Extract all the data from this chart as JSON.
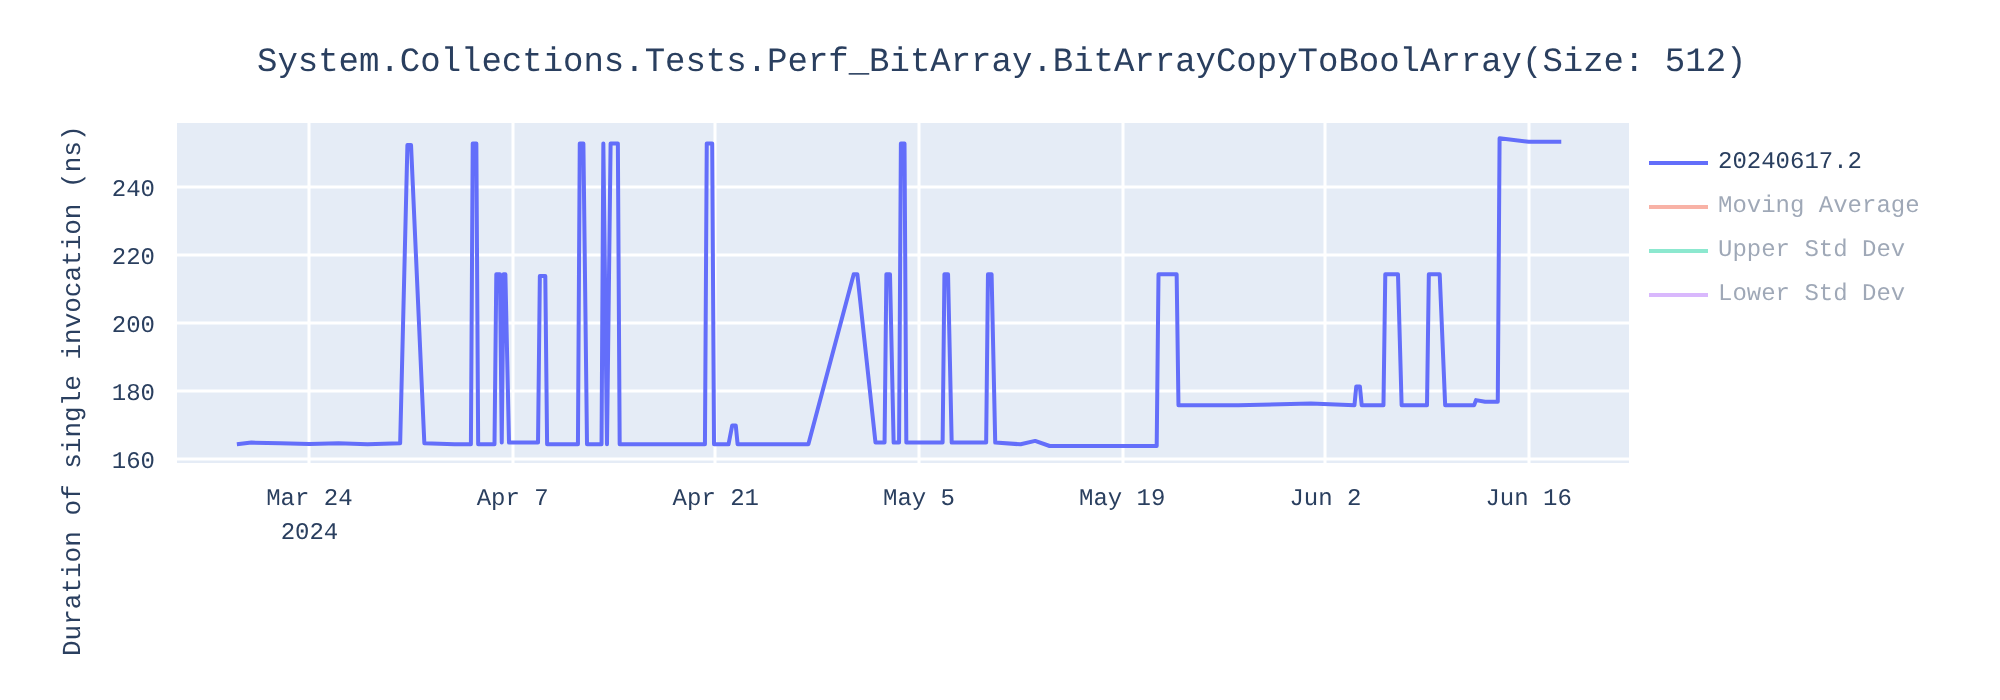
{
  "chart_data": {
    "type": "line",
    "title": "System.Collections.Tests.Perf_BitArray.BitArrayCopyToBoolArray(Size: 512)",
    "ylabel": "Duration of single invocation (ns)",
    "x": [
      "2024-03-19T00:00",
      "2024-03-20T00:00",
      "2024-03-22T00:00",
      "2024-03-24T00:00",
      "2024-03-26T00:00",
      "2024-03-28T00:00",
      "2024-03-30T06:00",
      "2024-03-30T18:00",
      "2024-03-31T00:00",
      "2024-03-31T22:00",
      "2024-04-03T00:00",
      "2024-04-04T03:00",
      "2024-04-04T06:00",
      "2024-04-04T12:00",
      "2024-04-04T15:00",
      "2024-04-05T18:00",
      "2024-04-05T21:00",
      "2024-04-06T03:00",
      "2024-04-06T06:00",
      "2024-04-06T09:00",
      "2024-04-06T12:00",
      "2024-04-06T18:00",
      "2024-04-08T18:00",
      "2024-04-08T21:00",
      "2024-04-09T06:00",
      "2024-04-09T09:00",
      "2024-04-11T12:00",
      "2024-04-11T15:00",
      "2024-04-11T21:00",
      "2024-04-12T03:00",
      "2024-04-13T03:00",
      "2024-04-13T06:00",
      "2024-04-13T12:00",
      "2024-04-13T18:00",
      "2024-04-14T06:00",
      "2024-04-14T09:00",
      "2024-04-20T06:00",
      "2024-04-20T09:00",
      "2024-04-20T18:00",
      "2024-04-20T21:00",
      "2024-04-21T21:00",
      "2024-04-22T03:00",
      "2024-04-22T09:00",
      "2024-04-22T12:00",
      "2024-04-27T09:00",
      "2024-04-30T12:00",
      "2024-04-30T18:00",
      "2024-05-02T00:00",
      "2024-05-02T15:00",
      "2024-05-02T18:00",
      "2024-05-03T00:00",
      "2024-05-03T06:00",
      "2024-05-03T15:00",
      "2024-05-03T18:00",
      "2024-05-04T00:00",
      "2024-05-04T03:00",
      "2024-05-06T15:00",
      "2024-05-06T18:00",
      "2024-05-07T00:00",
      "2024-05-07T06:00",
      "2024-05-09T15:00",
      "2024-05-09T18:00",
      "2024-05-10T00:00",
      "2024-05-10T06:00",
      "2024-05-12T00:00",
      "2024-05-13T00:00",
      "2024-05-14T00:00",
      "2024-05-17T00:00",
      "2024-05-21T09:00",
      "2024-05-21T12:00",
      "2024-05-22T18:00",
      "2024-05-22T21:00",
      "2024-05-27T00:00",
      "2024-06-01T00:00",
      "2024-06-04T00:00",
      "2024-06-04T03:00",
      "2024-06-04T09:00",
      "2024-06-04T12:00",
      "2024-06-06T00:00",
      "2024-06-06T03:00",
      "2024-06-07T00:00",
      "2024-06-07T06:00",
      "2024-06-09T00:00",
      "2024-06-09T03:00",
      "2024-06-09T21:00",
      "2024-06-10T06:00",
      "2024-06-12T06:00",
      "2024-06-12T09:00",
      "2024-06-13T00:00",
      "2024-06-13T21:00",
      "2024-06-14T00:00",
      "2024-06-16T00:00",
      "2024-06-18T06:00"
    ],
    "series": [
      {
        "name": "20240617.2",
        "color": "#636efa",
        "values": [
          164.5,
          165,
          164.8,
          164.6,
          164.8,
          164.5,
          164.8,
          252.5,
          252.5,
          164.8,
          164.5,
          164.5,
          253,
          253,
          164.5,
          164.5,
          214.5,
          214.5,
          165,
          214.5,
          214.5,
          165,
          165,
          214,
          214,
          164.5,
          164.5,
          253,
          253,
          164.5,
          164.5,
          253,
          164.5,
          253,
          253,
          164.5,
          164.5,
          253,
          253,
          164.5,
          164.5,
          170,
          170,
          164.5,
          164.5,
          214.5,
          214.5,
          165,
          165,
          214.5,
          214.5,
          165,
          165,
          253,
          253,
          165,
          165,
          214.5,
          214.5,
          165,
          165,
          214.5,
          214.5,
          165,
          164.5,
          165.5,
          164,
          164,
          164,
          214.5,
          214.5,
          176,
          176,
          176.5,
          176,
          181.5,
          181.5,
          176,
          176,
          214.5,
          214.5,
          176,
          176,
          214.5,
          214.5,
          176,
          176,
          177.5,
          177,
          177,
          254.5,
          253.5,
          253.5
        ]
      },
      {
        "name": "Moving Average",
        "color": "#ef553b",
        "values": [
          null,
          null,
          null,
          null,
          null,
          null,
          null,
          null,
          null,
          null,
          null,
          null,
          null,
          null,
          null,
          null,
          null,
          null,
          null,
          null,
          null,
          null,
          null,
          null,
          null,
          null,
          null,
          null,
          null,
          null,
          null,
          null,
          null,
          null,
          null,
          null,
          null,
          null,
          null,
          null,
          null,
          null,
          null,
          null,
          null,
          null,
          null,
          null,
          null,
          null,
          null,
          null,
          null,
          null,
          null,
          null,
          null,
          null,
          null,
          null,
          null,
          null,
          null,
          null,
          null,
          null,
          null,
          null,
          null,
          null,
          null,
          null,
          null,
          null,
          null,
          null,
          null,
          null,
          null,
          null,
          null,
          null,
          null,
          null,
          null,
          null,
          null,
          null,
          null,
          null,
          null,
          null,
          null
        ]
      },
      {
        "name": "Upper Std Dev",
        "color": "#00cc96",
        "values": [
          null,
          null,
          null,
          null,
          null,
          null,
          null,
          null,
          null,
          null,
          null,
          null,
          null,
          null,
          null,
          null,
          null,
          null,
          null,
          null,
          null,
          null,
          null,
          null,
          null,
          null,
          null,
          null,
          null,
          null,
          null,
          null,
          null,
          null,
          null,
          null,
          null,
          null,
          null,
          null,
          null,
          null,
          null,
          null,
          null,
          null,
          null,
          null,
          null,
          null,
          null,
          null,
          null,
          null,
          null,
          null,
          null,
          null,
          null,
          null,
          null,
          null,
          null,
          null,
          null,
          null,
          null,
          null,
          null,
          null,
          null,
          null,
          null,
          null,
          null,
          null,
          null,
          null,
          null,
          null,
          null,
          null,
          null,
          null,
          null,
          null,
          null,
          null,
          null,
          null,
          null,
          null,
          null
        ]
      },
      {
        "name": "Lower Std Dev",
        "color": "#ab63fa",
        "values": [
          null,
          null,
          null,
          null,
          null,
          null,
          null,
          null,
          null,
          null,
          null,
          null,
          null,
          null,
          null,
          null,
          null,
          null,
          null,
          null,
          null,
          null,
          null,
          null,
          null,
          null,
          null,
          null,
          null,
          null,
          null,
          null,
          null,
          null,
          null,
          null,
          null,
          null,
          null,
          null,
          null,
          null,
          null,
          null,
          null,
          null,
          null,
          null,
          null,
          null,
          null,
          null,
          null,
          null,
          null,
          null,
          null,
          null,
          null,
          null,
          null,
          null,
          null,
          null,
          null,
          null,
          null,
          null,
          null,
          null,
          null,
          null,
          null,
          null,
          null,
          null,
          null,
          null,
          null,
          null,
          null,
          null,
          null,
          null,
          null,
          null,
          null,
          null,
          null,
          null,
          null,
          null,
          null
        ]
      }
    ],
    "xlim": [
      "2024-03-14T21:00",
      "2024-06-22T22:00"
    ],
    "xticks": [
      {
        "value": "2024-03-24",
        "label": "Mar 24\n2024"
      },
      {
        "value": "2024-04-07",
        "label": "Apr 7"
      },
      {
        "value": "2024-04-21",
        "label": "Apr 21"
      },
      {
        "value": "2024-05-05",
        "label": "May 5"
      },
      {
        "value": "2024-05-19",
        "label": "May 19"
      },
      {
        "value": "2024-06-02",
        "label": "Jun 2"
      },
      {
        "value": "2024-06-16",
        "label": "Jun 16"
      }
    ],
    "ylim": [
      159,
      259
    ],
    "yticks": [
      160,
      180,
      200,
      220,
      240
    ],
    "grid": true,
    "legend": "right",
    "line_style": "solid"
  }
}
